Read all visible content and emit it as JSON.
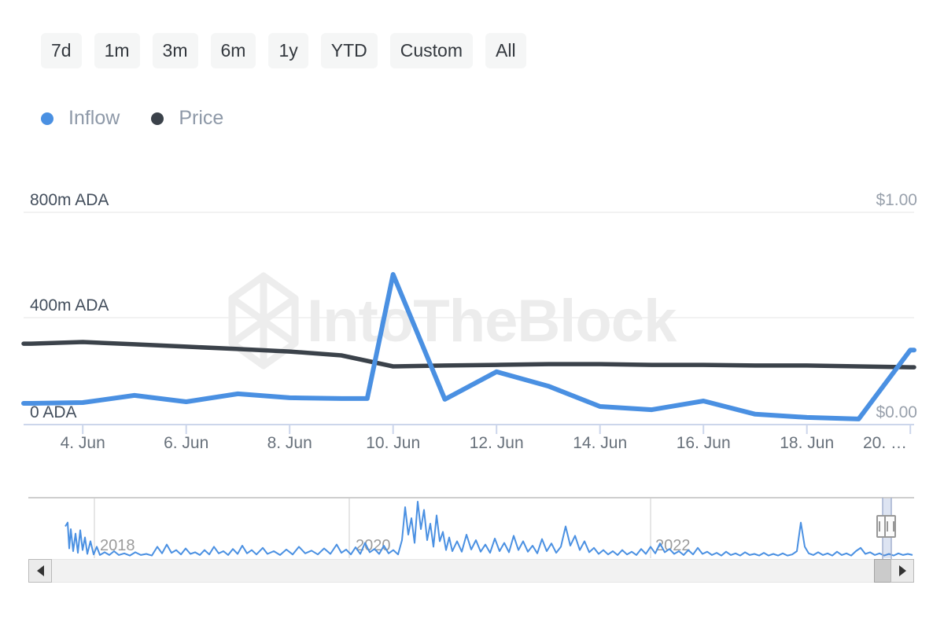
{
  "watermark": {
    "text": "IntoTheBlock",
    "color": "#ececec"
  },
  "toolbar": {
    "ranges": [
      "7d",
      "1m",
      "3m",
      "6m",
      "1y",
      "YTD",
      "Custom",
      "All"
    ]
  },
  "legend": {
    "items": [
      {
        "label": "Inflow",
        "color": "#4a90e2"
      },
      {
        "label": "Price",
        "color": "#3b424a"
      }
    ]
  },
  "chart_data": {
    "type": "line",
    "title": "",
    "x_tick_labels": [
      "4. Jun",
      "6. Jun",
      "8. Jun",
      "10. Jun",
      "12. Jun",
      "14. Jun",
      "16. Jun",
      "18. Jun",
      "20. …"
    ],
    "x_ticks_day": [
      4,
      6,
      8,
      10,
      12,
      14,
      16,
      18,
      20
    ],
    "y_left": {
      "labels": [
        "800m ADA",
        "400m ADA",
        "0 ADA"
      ],
      "values_million_ada": [
        800,
        400,
        0
      ]
    },
    "y_right": {
      "labels": [
        "$1.00",
        "$0.00"
      ],
      "values_usd": [
        1.0,
        0.0
      ]
    },
    "series": [
      {
        "name": "Inflow",
        "color": "#4a90e2",
        "unit": "million ADA",
        "points": [
          [
            3,
            80
          ],
          [
            4,
            83
          ],
          [
            5,
            110
          ],
          [
            6,
            86
          ],
          [
            7,
            116
          ],
          [
            8,
            101
          ],
          [
            9,
            98
          ],
          [
            9.5,
            98
          ],
          [
            10,
            566
          ],
          [
            11,
            95
          ],
          [
            12,
            199
          ],
          [
            13,
            145
          ],
          [
            14,
            68
          ],
          [
            15,
            56
          ],
          [
            16,
            89
          ],
          [
            17,
            39
          ],
          [
            18,
            27
          ],
          [
            19,
            21
          ],
          [
            20,
            281
          ]
        ]
      },
      {
        "name": "Price",
        "color": "#3b424a",
        "unit": "USD",
        "points": [
          [
            3,
            0.381
          ],
          [
            4,
            0.389
          ],
          [
            5,
            0.378
          ],
          [
            6,
            0.367
          ],
          [
            7,
            0.356
          ],
          [
            8,
            0.344
          ],
          [
            9,
            0.326
          ],
          [
            10,
            0.274
          ],
          [
            11,
            0.278
          ],
          [
            12,
            0.281
          ],
          [
            13,
            0.285
          ],
          [
            14,
            0.285
          ],
          [
            15,
            0.281
          ],
          [
            16,
            0.281
          ],
          [
            17,
            0.278
          ],
          [
            18,
            0.278
          ],
          [
            19,
            0.274
          ],
          [
            20,
            0.27
          ]
        ]
      }
    ],
    "navigator": {
      "year_labels": [
        "2018",
        "2020",
        "2022"
      ],
      "series_name": "Inflow (all time)",
      "series_amplitude": [
        [
          83,
          0.55
        ],
        [
          86,
          0.62
        ],
        [
          88,
          0.15
        ],
        [
          90,
          0.5
        ],
        [
          93,
          0.1
        ],
        [
          96,
          0.42
        ],
        [
          99,
          0.07
        ],
        [
          102,
          0.48
        ],
        [
          105,
          0.12
        ],
        [
          108,
          0.35
        ],
        [
          111,
          0.05
        ],
        [
          115,
          0.28
        ],
        [
          119,
          0.04
        ],
        [
          123,
          0.18
        ],
        [
          127,
          0.03
        ],
        [
          133,
          0.08
        ],
        [
          139,
          0.03
        ],
        [
          145,
          0.1
        ],
        [
          151,
          0.03
        ],
        [
          158,
          0.06
        ],
        [
          165,
          0.02
        ],
        [
          172,
          0.08
        ],
        [
          179,
          0.03
        ],
        [
          186,
          0.05
        ],
        [
          193,
          0.02
        ],
        [
          200,
          0.18
        ],
        [
          206,
          0.06
        ],
        [
          212,
          0.22
        ],
        [
          218,
          0.07
        ],
        [
          224,
          0.12
        ],
        [
          230,
          0.04
        ],
        [
          236,
          0.15
        ],
        [
          242,
          0.05
        ],
        [
          248,
          0.08
        ],
        [
          254,
          0.03
        ],
        [
          260,
          0.12
        ],
        [
          266,
          0.04
        ],
        [
          272,
          0.18
        ],
        [
          278,
          0.06
        ],
        [
          284,
          0.1
        ],
        [
          290,
          0.03
        ],
        [
          296,
          0.14
        ],
        [
          302,
          0.05
        ],
        [
          308,
          0.2
        ],
        [
          314,
          0.06
        ],
        [
          320,
          0.12
        ],
        [
          326,
          0.04
        ],
        [
          334,
          0.16
        ],
        [
          340,
          0.05
        ],
        [
          348,
          0.1
        ],
        [
          356,
          0.03
        ],
        [
          364,
          0.13
        ],
        [
          372,
          0.04
        ],
        [
          380,
          0.18
        ],
        [
          388,
          0.06
        ],
        [
          396,
          0.11
        ],
        [
          404,
          0.04
        ],
        [
          412,
          0.15
        ],
        [
          420,
          0.05
        ],
        [
          428,
          0.22
        ],
        [
          434,
          0.07
        ],
        [
          440,
          0.13
        ],
        [
          446,
          0.04
        ],
        [
          452,
          0.17
        ],
        [
          458,
          0.05
        ],
        [
          464,
          0.25
        ],
        [
          470,
          0.08
        ],
        [
          476,
          0.14
        ],
        [
          482,
          0.05
        ],
        [
          488,
          0.2
        ],
        [
          494,
          0.06
        ],
        [
          500,
          0.12
        ],
        [
          506,
          0.04
        ],
        [
          511,
          0.3
        ],
        [
          515,
          0.9
        ],
        [
          519,
          0.4
        ],
        [
          523,
          0.7
        ],
        [
          527,
          0.25
        ],
        [
          531,
          1.0
        ],
        [
          535,
          0.5
        ],
        [
          539,
          0.85
        ],
        [
          543,
          0.3
        ],
        [
          547,
          0.6
        ],
        [
          551,
          0.18
        ],
        [
          555,
          0.75
        ],
        [
          559,
          0.28
        ],
        [
          563,
          0.45
        ],
        [
          567,
          0.12
        ],
        [
          571,
          0.35
        ],
        [
          575,
          0.1
        ],
        [
          581,
          0.28
        ],
        [
          587,
          0.09
        ],
        [
          593,
          0.4
        ],
        [
          599,
          0.13
        ],
        [
          605,
          0.3
        ],
        [
          611,
          0.09
        ],
        [
          617,
          0.22
        ],
        [
          623,
          0.07
        ],
        [
          629,
          0.33
        ],
        [
          635,
          0.1
        ],
        [
          641,
          0.25
        ],
        [
          647,
          0.08
        ],
        [
          653,
          0.38
        ],
        [
          659,
          0.12
        ],
        [
          665,
          0.28
        ],
        [
          671,
          0.09
        ],
        [
          677,
          0.2
        ],
        [
          683,
          0.06
        ],
        [
          689,
          0.32
        ],
        [
          695,
          0.1
        ],
        [
          701,
          0.24
        ],
        [
          707,
          0.07
        ],
        [
          713,
          0.18
        ],
        [
          719,
          0.55
        ],
        [
          725,
          0.2
        ],
        [
          731,
          0.38
        ],
        [
          737,
          0.12
        ],
        [
          743,
          0.28
        ],
        [
          749,
          0.08
        ],
        [
          755,
          0.16
        ],
        [
          761,
          0.05
        ],
        [
          767,
          0.12
        ],
        [
          773,
          0.04
        ],
        [
          779,
          0.1
        ],
        [
          785,
          0.03
        ],
        [
          791,
          0.12
        ],
        [
          797,
          0.04
        ],
        [
          803,
          0.09
        ],
        [
          809,
          0.03
        ],
        [
          815,
          0.14
        ],
        [
          821,
          0.05
        ],
        [
          827,
          0.18
        ],
        [
          833,
          0.06
        ],
        [
          839,
          0.24
        ],
        [
          845,
          0.08
        ],
        [
          851,
          0.14
        ],
        [
          857,
          0.05
        ],
        [
          863,
          0.1
        ],
        [
          869,
          0.03
        ],
        [
          875,
          0.12
        ],
        [
          881,
          0.04
        ],
        [
          887,
          0.16
        ],
        [
          893,
          0.05
        ],
        [
          899,
          0.09
        ],
        [
          905,
          0.03
        ],
        [
          911,
          0.07
        ],
        [
          917,
          0.02
        ],
        [
          923,
          0.09
        ],
        [
          929,
          0.03
        ],
        [
          935,
          0.06
        ],
        [
          941,
          0.02
        ],
        [
          947,
          0.08
        ],
        [
          953,
          0.03
        ],
        [
          959,
          0.05
        ],
        [
          965,
          0.02
        ],
        [
          971,
          0.07
        ],
        [
          977,
          0.02
        ],
        [
          983,
          0.05
        ],
        [
          989,
          0.02
        ],
        [
          995,
          0.06
        ],
        [
          1001,
          0.02
        ],
        [
          1007,
          0.04
        ],
        [
          1013,
          0.1
        ],
        [
          1018,
          0.62
        ],
        [
          1023,
          0.18
        ],
        [
          1028,
          0.06
        ],
        [
          1034,
          0.03
        ],
        [
          1040,
          0.08
        ],
        [
          1046,
          0.03
        ],
        [
          1052,
          0.06
        ],
        [
          1058,
          0.02
        ],
        [
          1064,
          0.09
        ],
        [
          1070,
          0.03
        ],
        [
          1076,
          0.06
        ],
        [
          1082,
          0.02
        ],
        [
          1088,
          0.1
        ],
        [
          1094,
          0.16
        ],
        [
          1100,
          0.05
        ],
        [
          1106,
          0.08
        ],
        [
          1112,
          0.03
        ],
        [
          1118,
          0.06
        ],
        [
          1124,
          0.02
        ],
        [
          1130,
          0.05
        ],
        [
          1136,
          0.02
        ],
        [
          1142,
          0.06
        ],
        [
          1148,
          0.03
        ],
        [
          1154,
          0.05
        ],
        [
          1160,
          0.03
        ]
      ]
    },
    "layout_hints": {
      "grid": "horizontal-only",
      "legend_position": "top-left",
      "navigator_selected_range": "far-right"
    }
  },
  "colors": {
    "accent_blue": "#4a90e2",
    "price_dark": "#3b424a",
    "axis_line": "#ccd6eb",
    "gridline": "#f2f2f2",
    "nav_border": "#bdbdbd",
    "nav_gridline": "#e6e6e6",
    "selection_mask": "rgba(102,133,194,0.22)"
  }
}
